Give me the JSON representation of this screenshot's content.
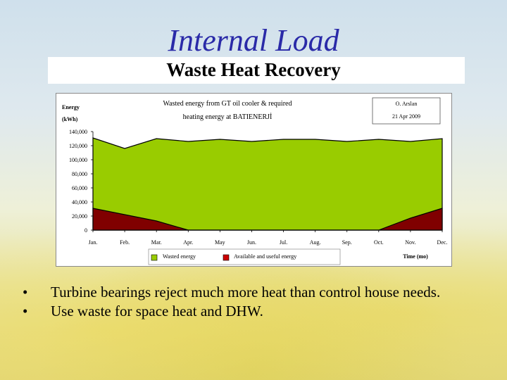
{
  "slide": {
    "title": "Internal Load",
    "subtitle": "Waste Heat Recovery",
    "bullets": [
      "Turbine bearings reject much more heat than control house needs.",
      "Use waste for space heat and DHW."
    ]
  },
  "chart_data": {
    "type": "area",
    "title_line1": "Wasted energy from GT oil cooler & required",
    "title_line2": "heating energy at BATIENERJİ",
    "author": "O. Arslan",
    "date": "21 Apr 2009",
    "ylabel_line1": "Energy",
    "ylabel_line2": "(kWh)",
    "xlabel": "Time (mo)",
    "categories": [
      "Jan.",
      "Feb.",
      "Mar.",
      "Apr.",
      "May",
      "Jun.",
      "Jul.",
      "Aug.",
      "Sep.",
      "Oct.",
      "Nov.",
      "Dec."
    ],
    "ylim": [
      0,
      140000
    ],
    "y_ticks": [
      "0",
      "20,000",
      "40,000",
      "60,000",
      "80,000",
      "100,000",
      "120,000",
      "140,000"
    ],
    "series": [
      {
        "name": "Wasted energy",
        "color": "#99cc00",
        "values": [
          131000,
          116000,
          130000,
          126000,
          129000,
          126000,
          129000,
          129000,
          126000,
          129000,
          126000,
          130000
        ]
      },
      {
        "name": "Available and useful energy",
        "color": "#800000",
        "values": [
          31000,
          22000,
          13000,
          0,
          0,
          0,
          0,
          0,
          0,
          0,
          17000,
          31000
        ]
      }
    ],
    "legend": "bottom"
  }
}
